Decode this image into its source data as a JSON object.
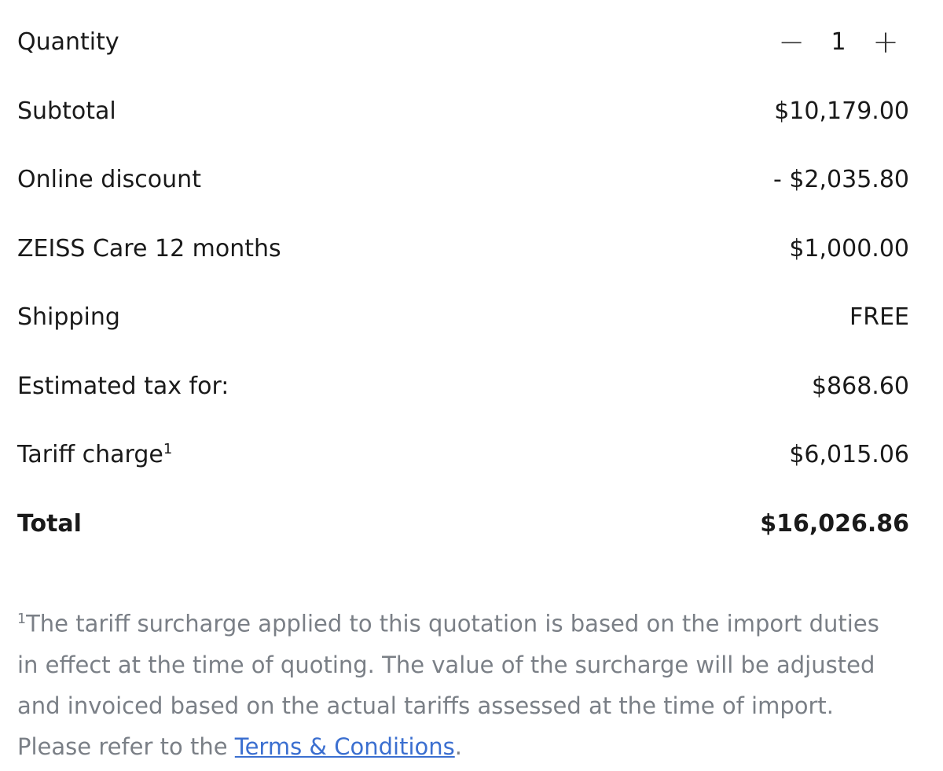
{
  "quantity": {
    "label": "Quantity",
    "value": "1",
    "minus": "−",
    "plus": "+"
  },
  "rows": [
    {
      "label": "Subtotal",
      "value": "$10,179.00"
    },
    {
      "label": "Online discount",
      "value": "- $2,035.80"
    },
    {
      "label": "ZEISS Care 12 months",
      "value": "$1,000.00"
    },
    {
      "label": "Shipping",
      "value": "FREE"
    },
    {
      "label": "Estimated tax for:",
      "value": "$868.60"
    },
    {
      "label": "Tariff charge",
      "sup": "1",
      "value": "$6,015.06"
    }
  ],
  "total": {
    "label": "Total",
    "value": "$16,026.86"
  },
  "footnote": {
    "marker": "1",
    "text": "The tariff surcharge applied to this quotation is based on the import duties in effect at the time of quoting. The value of the surcharge will be adjusted and invoiced based on the actual tariffs assessed at the time of import. Please refer to the ",
    "link": "Terms & Conditions",
    "end": "."
  }
}
